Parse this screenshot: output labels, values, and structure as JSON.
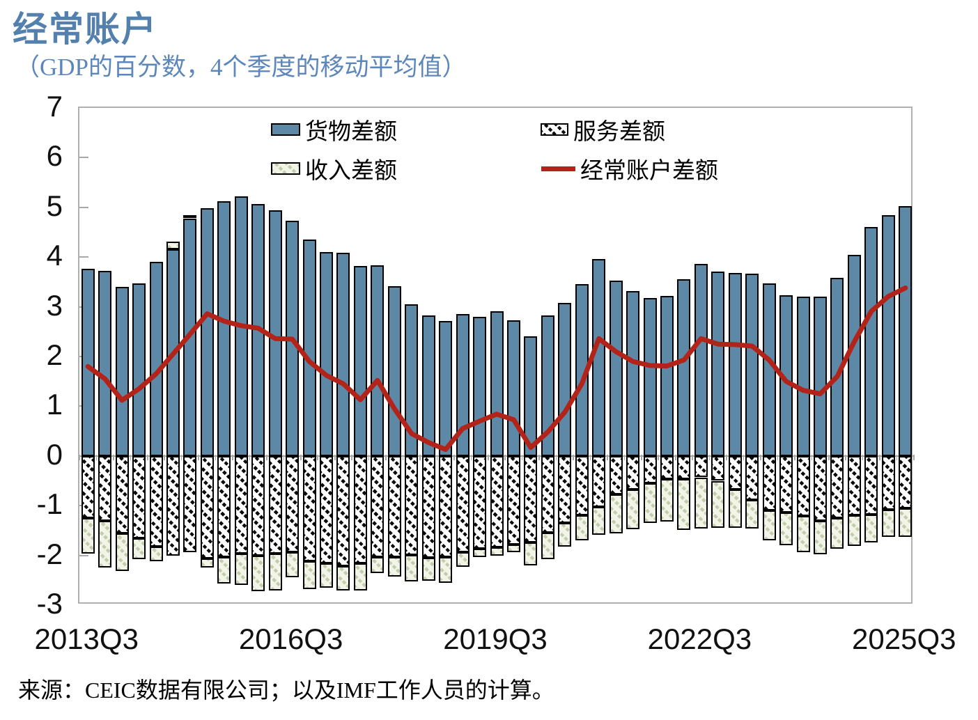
{
  "header": {
    "title": "经常账户",
    "subtitle": "（GDP的百分数，4个季度的移动平均值）",
    "title_color": "#5480ae"
  },
  "legend": {
    "goods_label": "货物差额",
    "services_label": "服务差额",
    "income_label": "收入差额",
    "current_account_label": "经常账户差额"
  },
  "source_note": "来源：CEIC数据有限公司；以及IMF工作人员的计算。",
  "chart_data": {
    "type": "stacked-bar+line",
    "title": "经常账户",
    "subtitle": "（GDP的百分数，4个季度的移动平均值）",
    "ylim": [
      -3,
      7
    ],
    "y_ticks": [
      7,
      6,
      5,
      4,
      3,
      2,
      1,
      0,
      -1,
      -2,
      -3
    ],
    "grid": false,
    "legend_position": "top-inside",
    "axis_color": "#a9a9a9",
    "categories": [
      "2013Q3",
      "2013Q4",
      "2014Q1",
      "2014Q2",
      "2014Q3",
      "2014Q4",
      "2015Q1",
      "2015Q2",
      "2015Q3",
      "2015Q4",
      "2016Q1",
      "2016Q2",
      "2016Q3",
      "2016Q4",
      "2017Q1",
      "2017Q2",
      "2017Q3",
      "2017Q4",
      "2018Q1",
      "2018Q2",
      "2018Q3",
      "2018Q4",
      "2019Q1",
      "2019Q2",
      "2019Q3",
      "2019Q4",
      "2020Q1",
      "2020Q2",
      "2020Q3",
      "2020Q4",
      "2021Q1",
      "2021Q2",
      "2021Q3",
      "2021Q4",
      "2022Q1",
      "2022Q2",
      "2022Q3",
      "2022Q4",
      "2023Q1",
      "2023Q2",
      "2023Q3",
      "2023Q4",
      "2024Q1",
      "2024Q2",
      "2024Q3",
      "2024Q4",
      "2025Q1",
      "2025Q2",
      "2025Q3"
    ],
    "x_tick_labels": [
      {
        "index": 0,
        "label": "2013Q3"
      },
      {
        "index": 12,
        "label": "2016Q3"
      },
      {
        "index": 24,
        "label": "2019Q3"
      },
      {
        "index": 36,
        "label": "2022Q3"
      },
      {
        "index": 48,
        "label": "2025Q3"
      }
    ],
    "series": [
      {
        "name": "货物差额",
        "type": "bar",
        "color": "#5d89a6",
        "pattern": "solid",
        "values": [
          3.76,
          3.72,
          3.4,
          3.47,
          3.91,
          4.15,
          4.78,
          4.98,
          5.12,
          5.22,
          5.07,
          4.94,
          4.73,
          4.35,
          4.1,
          4.09,
          3.82,
          3.84,
          3.41,
          3.05,
          2.83,
          2.72,
          2.85,
          2.8,
          2.91,
          2.73,
          2.4,
          2.83,
          3.08,
          3.46,
          3.96,
          3.52,
          3.31,
          3.18,
          3.22,
          3.55,
          3.86,
          3.71,
          3.68,
          3.66,
          3.47,
          3.23,
          3.21,
          3.21,
          3.58,
          4.05,
          4.61,
          4.85,
          5.03
        ]
      },
      {
        "name": "服务差额",
        "type": "bar",
        "color": "#000000",
        "pattern": "black-diagonal-hatch",
        "values": [
          -1.25,
          -1.3,
          -1.56,
          -1.66,
          -1.82,
          -2.01,
          -1.93,
          -2.06,
          -2.03,
          -1.97,
          -2.0,
          -1.97,
          -1.93,
          -2.12,
          -2.16,
          -2.21,
          -2.16,
          -2.04,
          -2.04,
          -1.99,
          -2.05,
          -2.03,
          -1.93,
          -1.87,
          -1.84,
          -1.78,
          -1.74,
          -1.54,
          -1.35,
          -1.2,
          -1.03,
          -0.78,
          -0.68,
          -0.55,
          -0.47,
          -0.47,
          -0.43,
          -0.5,
          -0.67,
          -0.89,
          -1.1,
          -1.14,
          -1.21,
          -1.31,
          -1.25,
          -1.2,
          -1.18,
          -1.08,
          -1.06
        ]
      },
      {
        "name": "收入差额",
        "type": "bar",
        "color": "#c3cdab",
        "pattern": "light-green-diagonal-hatch",
        "values": [
          -0.72,
          -0.94,
          -0.75,
          -0.42,
          -0.3,
          0.16,
          0.07,
          -0.19,
          -0.53,
          -0.62,
          -0.72,
          -0.73,
          -0.51,
          -0.56,
          -0.49,
          -0.49,
          -0.55,
          -0.31,
          -0.38,
          -0.53,
          -0.46,
          -0.52,
          -0.3,
          -0.17,
          -0.16,
          -0.16,
          -0.46,
          -0.53,
          -0.48,
          -0.5,
          -0.55,
          -0.78,
          -0.79,
          -0.8,
          -0.85,
          -1.02,
          -1.03,
          -0.94,
          -0.77,
          -0.57,
          -0.6,
          -0.65,
          -0.72,
          -0.67,
          -0.61,
          -0.61,
          -0.56,
          -0.55,
          -0.57
        ]
      },
      {
        "name": "经常账户差额",
        "type": "line",
        "color": "#b2231a",
        "values": [
          1.8,
          1.55,
          1.12,
          1.35,
          1.65,
          2.05,
          2.45,
          2.86,
          2.71,
          2.62,
          2.57,
          2.36,
          2.35,
          1.9,
          1.62,
          1.45,
          1.13,
          1.52,
          0.95,
          0.45,
          0.27,
          0.13,
          0.55,
          0.7,
          0.84,
          0.73,
          0.17,
          0.48,
          0.88,
          1.45,
          2.36,
          2.1,
          1.9,
          1.82,
          1.81,
          1.93,
          2.36,
          2.25,
          2.24,
          2.21,
          1.93,
          1.5,
          1.32,
          1.25,
          1.6,
          2.3,
          2.91,
          3.21,
          3.38
        ]
      }
    ]
  }
}
